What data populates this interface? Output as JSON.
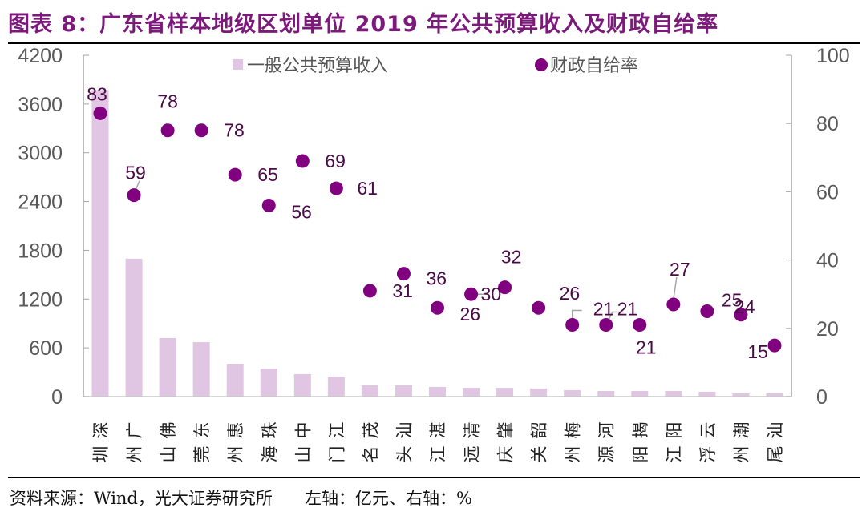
{
  "header": {
    "title": "图表 8：广东省样本地级区划单位 2019 年公共预算收入及财政自给率"
  },
  "footer": {
    "source": "资料来源：Wind，光大证券研究所      左轴：亿元、右轴：%"
  },
  "colors": {
    "title": "#7b1a7a",
    "bar": "#e0c6e2",
    "dot": "#800080",
    "axis": "#a6a6a6",
    "tick_text": "#595959",
    "label_text": "#4a0a48"
  },
  "chart_data": {
    "type": "bar",
    "title": "广东省样本地级区划单位 2019 年公共预算收入及财政自给率",
    "xlabel": "",
    "ylabel": "亿元",
    "y2label": "%",
    "categories": [
      "深圳",
      "广州",
      "佛山",
      "东莞",
      "惠州",
      "珠海",
      "中山",
      "江门",
      "茂名",
      "汕头",
      "湛江",
      "清远",
      "肇庆",
      "韶关",
      "梅州",
      "河源",
      "揭阳",
      "阳江",
      "云浮",
      "潮州",
      "汕尾"
    ],
    "series": [
      {
        "name": "一般公共预算收入",
        "type": "bar",
        "axis": "left",
        "values": [
          3773,
          1697,
          720,
          670,
          404,
          345,
          276,
          247,
          138,
          138,
          118,
          108,
          108,
          99,
          79,
          69,
          69,
          69,
          59,
          40,
          40
        ]
      },
      {
        "name": "财政自给率",
        "type": "scatter",
        "axis": "right",
        "values": [
          83,
          59,
          78,
          78,
          65,
          56,
          69,
          61,
          31,
          36,
          26,
          30,
          32,
          26,
          21,
          21,
          21,
          27,
          25,
          24,
          15
        ]
      }
    ],
    "ylim": [
      0,
      4200
    ],
    "yticks": [
      0,
      600,
      1200,
      1800,
      2400,
      3000,
      3600,
      4200
    ],
    "y2lim": [
      0,
      100
    ],
    "y2ticks": [
      0,
      20,
      40,
      60,
      80,
      100
    ],
    "grid": false,
    "legend": "top-center"
  }
}
